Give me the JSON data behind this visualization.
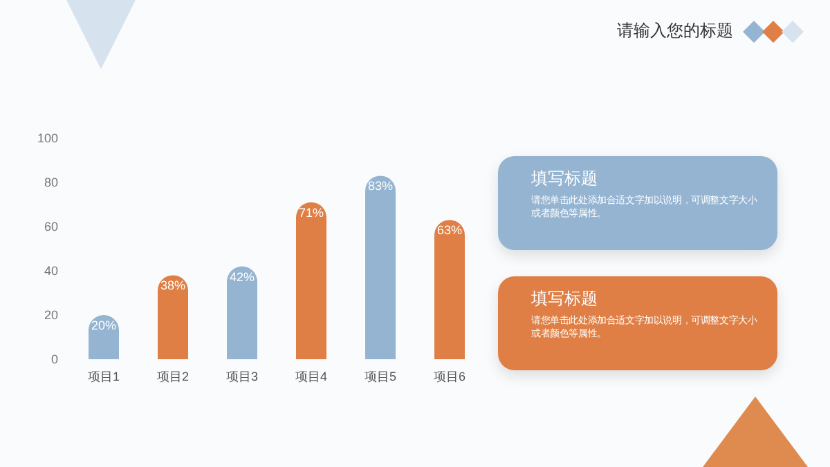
{
  "chart_data": {
    "type": "bar",
    "title": "请输入您的标题",
    "categories": [
      "项目1",
      "项目2",
      "项目3",
      "项目4",
      "项目5",
      "项目6"
    ],
    "values": [
      20,
      38,
      42,
      71,
      83,
      63
    ],
    "value_labels": [
      "20%",
      "38%",
      "42%",
      "71%",
      "83%",
      "63%"
    ],
    "colors": [
      "#94b4d1",
      "#df7f45",
      "#94b4d1",
      "#df7f45",
      "#94b4d1",
      "#df7f45"
    ],
    "ylim": [
      0,
      100
    ],
    "yticks": [
      0,
      20,
      40,
      60,
      80,
      100
    ],
    "grid": false,
    "annotations": [
      "填写标题",
      "请您单击此处添加合适文字加以说明，可调整文字大小或者颜色等属性。",
      "填写标题",
      "请您单击此处添加合适文字加以说明，可调整文字大小或者颜色等属性。"
    ]
  }
}
